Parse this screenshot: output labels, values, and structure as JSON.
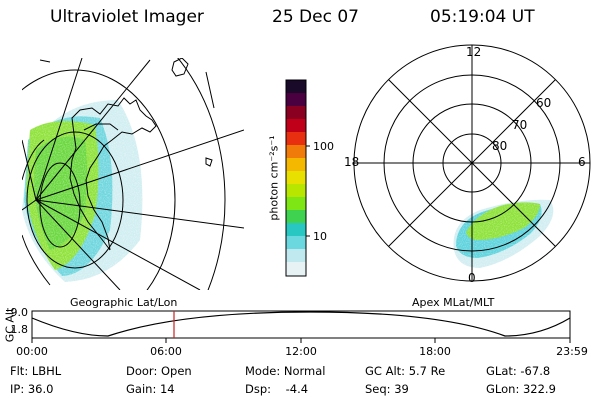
{
  "header": {
    "title": "Ultraviolet Imager",
    "date": "25 Dec 07",
    "time": "05:19:04 UT"
  },
  "geo_panel": {
    "label": "Geographic Lat/Lon"
  },
  "mag_panel": {
    "label": "Apex MLat/MLT",
    "mlt_labels": [
      "12",
      "18",
      "6",
      "0"
    ],
    "lat_labels": [
      "60",
      "70",
      "80"
    ]
  },
  "colorbar": {
    "unit_label": "photon cm⁻²s⁻¹",
    "ticks": [
      "100",
      "10"
    ],
    "colors": [
      "#1a0a2a",
      "#4a0040",
      "#8a0020",
      "#c00018",
      "#e83010",
      "#f07a0a",
      "#f4b800",
      "#e8e000",
      "#b8e600",
      "#7ee614",
      "#3ed250",
      "#29c7c2",
      "#6bd8e0",
      "#bfe9ee",
      "#e6f2f3"
    ]
  },
  "gc_alt_plot": {
    "ylabel": "GC Alt",
    "y_ticks": [
      "9.0",
      "1.8"
    ],
    "x_ticks": [
      "00:00",
      "06:00",
      "12:00",
      "18:00",
      "23:59"
    ],
    "marker_time": "05:19"
  },
  "info": {
    "flt": "Flt: LBHL",
    "ip": "IP: 36.0",
    "door": "Door: Open",
    "gain": "Gain: 14",
    "mode": "Mode: Normal",
    "dsp": "Dsp:    -4.4",
    "gc_alt": "GC Alt: 5.7 Re",
    "seq": "Seq: 39",
    "glat": "GLat: -67.8",
    "glon": "GLon: 322.9"
  }
}
